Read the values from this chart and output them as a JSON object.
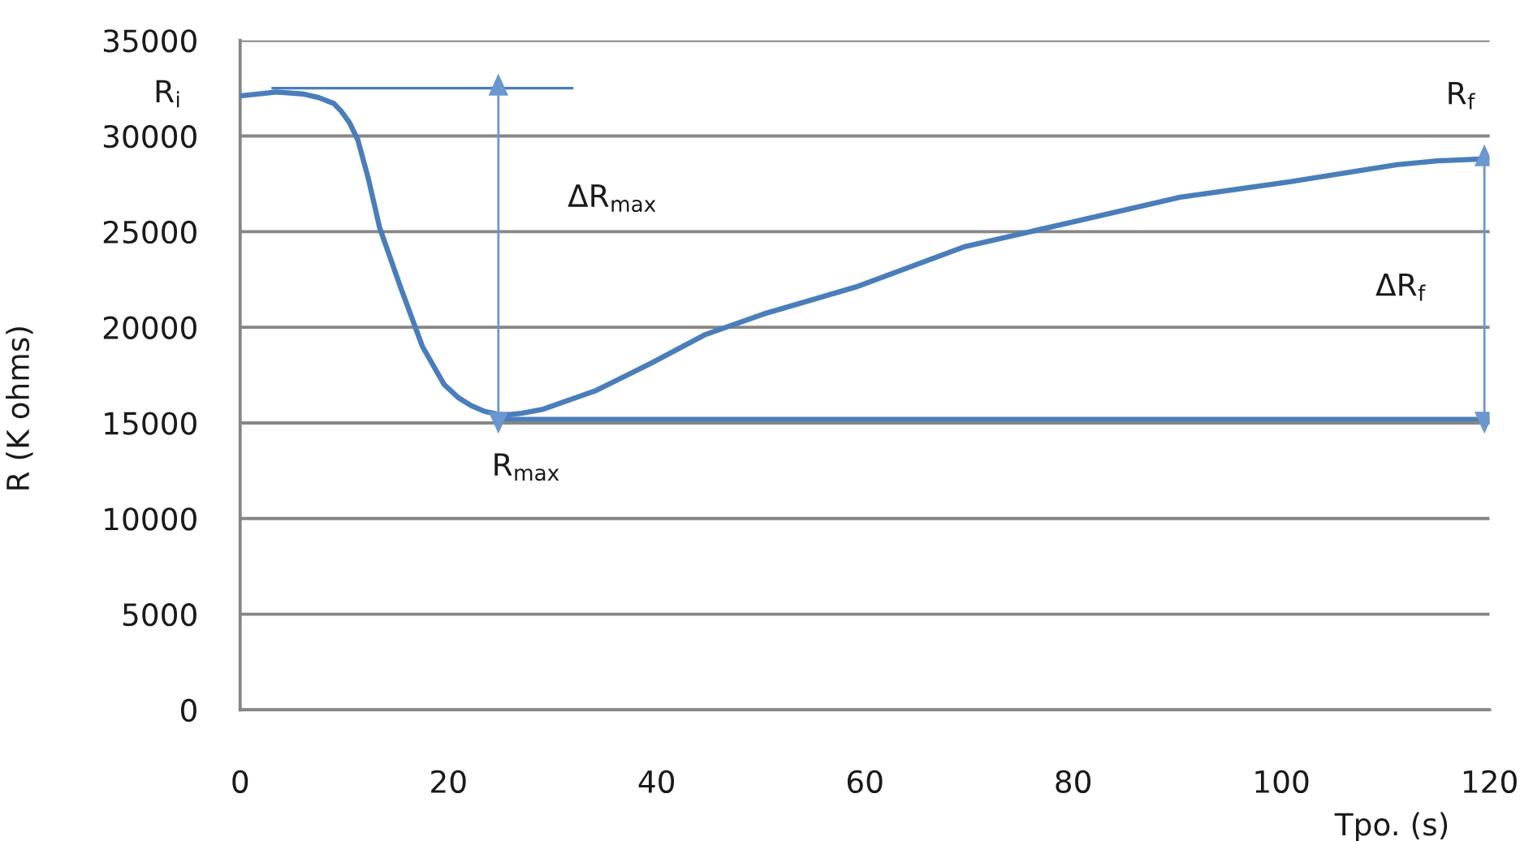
{
  "chart_data": {
    "type": "line",
    "xlabel": "Tpo. (s)",
    "ylabel": "R (K ohms)",
    "xlim": [
      0,
      120
    ],
    "xticks": [
      0,
      20,
      40,
      60,
      80,
      100,
      120
    ],
    "ylim": [
      0,
      35000
    ],
    "yticks": [
      0,
      5000,
      10000,
      15000,
      20000,
      25000,
      30000,
      35000
    ],
    "grid": "y",
    "series": [
      {
        "color": "#4a7ebb",
        "x": [
          0,
          3.5,
          6,
          7.6,
          9,
          9.7,
          10.5,
          11.3,
          12.3,
          13.4,
          15.4,
          17.5,
          19.6,
          21,
          22.2,
          23.5,
          25.3,
          27,
          29,
          34.2,
          39.4,
          44.6,
          50.3,
          59.1,
          69.5,
          79.9,
          90.3,
          100.7,
          111.1,
          115,
          119.4
        ],
        "values": [
          32100,
          32300,
          32200,
          32000,
          31700,
          31300,
          30700,
          29800,
          27800,
          25200,
          22100,
          19000,
          17000,
          16300,
          15900,
          15600,
          15400,
          15500,
          15700,
          16700,
          18100,
          19600,
          20700,
          22100,
          24200,
          25500,
          26800,
          27600,
          28500,
          28700,
          28800
        ]
      },
      {
        "color": "#4a7ebb",
        "x": [
          3,
          32
        ],
        "values": [
          32500,
          32500
        ]
      },
      {
        "color": "#4a7ebb",
        "x": [
          25.3,
          120
        ],
        "values": [
          15200,
          15200
        ]
      },
      {
        "color": "#6b97cf",
        "x": [
          24.8,
          24.8
        ],
        "values": [
          32500,
          15200
        ],
        "marker": "triangle"
      },
      {
        "color": "#6b97cf",
        "x": [
          119.5,
          119.5
        ],
        "values": [
          28800,
          15200
        ],
        "marker": "triangle"
      }
    ],
    "annotations": [
      "R$_{i}$",
      "ΔR$_{max}$",
      {
        "text": "R$_{max}$",
        "x": 25.3,
        "y": 15400
      },
      {
        "text": "R$_{f}$",
        "x": 119.4,
        "y": 28800
      },
      "ΔR$_{f}$"
    ]
  }
}
